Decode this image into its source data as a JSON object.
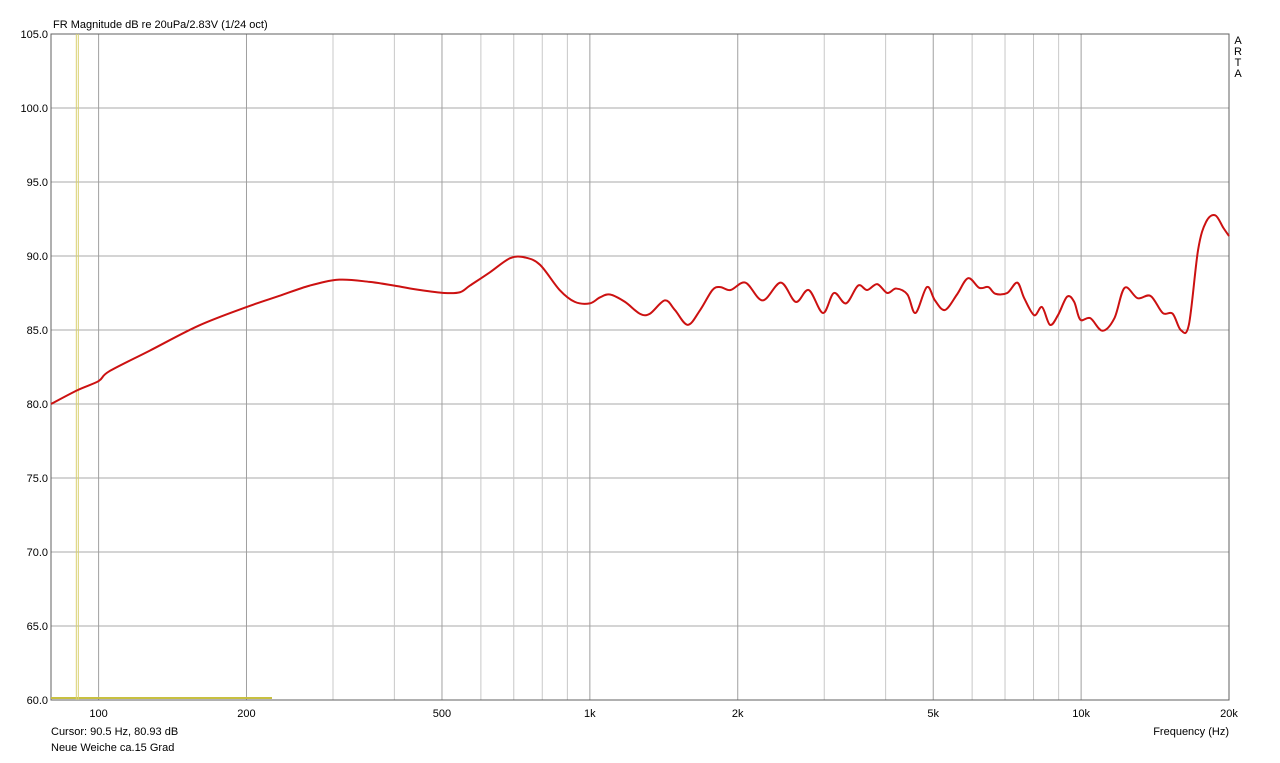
{
  "chart_data": {
    "type": "line",
    "title": "FR Magnitude dB re 20uPa/2.83V (1/24 oct)",
    "x_label": "Frequency (Hz)",
    "watermark": "ARTA",
    "cursor": {
      "x": 90.5,
      "label": "Cursor: 90.5 Hz, 80.93 dB"
    },
    "legend_text": "Neue Weiche ca.15 Grad",
    "xscale": "log",
    "grid": true,
    "xlim": [
      80,
      20000
    ],
    "ylim": [
      60,
      105
    ],
    "xticks": [
      100,
      200,
      500,
      {
        "value": 1000,
        "label": "1k"
      },
      {
        "value": 2000,
        "label": "2k"
      },
      {
        "value": 5000,
        "label": "5k"
      },
      {
        "value": 10000,
        "label": "10k"
      },
      {
        "value": 20000,
        "label": "20k"
      }
    ],
    "xminor": [
      300,
      400,
      600,
      700,
      800,
      900,
      3000,
      4000,
      6000,
      7000,
      8000,
      9000
    ],
    "yticks": [
      {
        "value": 60,
        "label": "60.0"
      },
      {
        "value": 65,
        "label": "65.0"
      },
      {
        "value": 70,
        "label": "70.0"
      },
      {
        "value": 75,
        "label": "75.0"
      },
      {
        "value": 80,
        "label": "80.0"
      },
      {
        "value": 85,
        "label": "85.0"
      },
      {
        "value": 90,
        "label": "90.0"
      },
      {
        "value": 95,
        "label": "95.0"
      },
      {
        "value": 100,
        "label": "100.0"
      },
      {
        "value": 105,
        "label": "105.0"
      }
    ],
    "x": [
      80,
      90.5,
      100,
      105,
      127,
      160,
      200,
      233,
      269,
      309,
      356,
      400,
      451,
      506,
      544,
      570,
      626,
      688,
      738,
      792,
      868,
      932,
      1000,
      1048,
      1099,
      1179,
      1264,
      1325,
      1421,
      1490,
      1582,
      1677,
      1776,
      1844,
      1934,
      2074,
      2247,
      2447,
      2625,
      2790,
      2982,
      3139,
      3322,
      3515,
      3668,
      3845,
      4030,
      4204,
      4430,
      4602,
      4853,
      5040,
      5281,
      5589,
      5887,
      6204,
      6473,
      6690,
      7074,
      7414,
      7659,
      8025,
      8326,
      8642,
      8972,
      9364,
      9680,
      9959,
      10440,
      11050,
      11690,
      12260,
      13030,
      13850,
      14660,
      15360,
      15950,
      16570,
      17300,
      17960,
      18750,
      19480,
      20000
    ],
    "series": [
      {
        "color": "#cc1111",
        "values": [
          80.0,
          80.93,
          81.55,
          82.2,
          83.6,
          85.3,
          86.55,
          87.3,
          88.0,
          88.4,
          88.25,
          88.0,
          87.7,
          87.5,
          87.55,
          88.0,
          88.9,
          89.85,
          89.9,
          89.4,
          87.7,
          86.9,
          86.8,
          87.2,
          87.4,
          86.9,
          86.1,
          86.1,
          87.0,
          86.35,
          85.35,
          86.35,
          87.7,
          87.9,
          87.7,
          88.2,
          87.0,
          88.2,
          86.9,
          87.7,
          86.15,
          87.5,
          86.8,
          88.0,
          87.7,
          88.1,
          87.5,
          87.8,
          87.4,
          86.15,
          87.9,
          87.0,
          86.35,
          87.4,
          88.5,
          87.85,
          87.9,
          87.45,
          87.5,
          88.2,
          87.15,
          86.0,
          86.55,
          85.35,
          86.0,
          87.25,
          86.9,
          85.7,
          85.8,
          84.95,
          85.8,
          87.85,
          87.15,
          87.3,
          86.15,
          86.1,
          85.0,
          85.35,
          90.4,
          92.3,
          92.75,
          91.9,
          91.35
        ]
      }
    ]
  }
}
